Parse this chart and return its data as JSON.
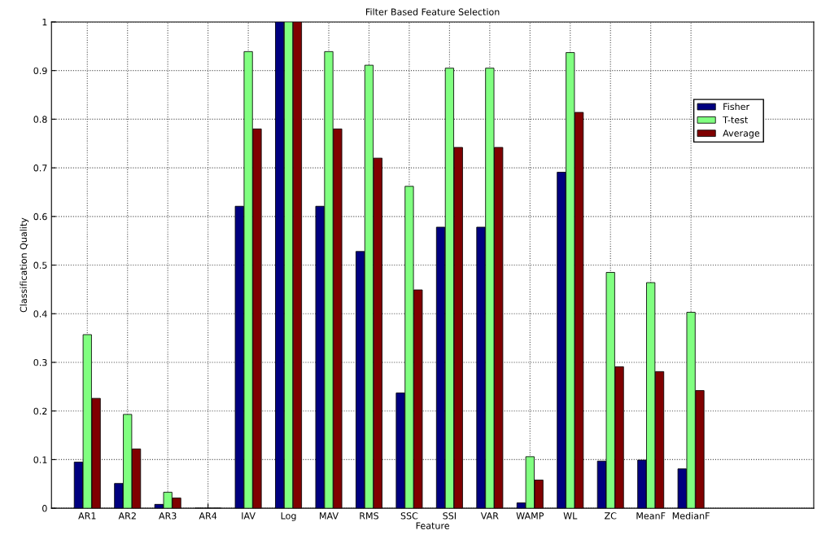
{
  "chart_data": {
    "type": "bar",
    "title": "Filter Based Feature Selection",
    "xlabel": "Feature",
    "ylabel": "Classification Quality",
    "categories": [
      "AR1",
      "AR2",
      "AR3",
      "AR4",
      "IAV",
      "Log",
      "MAV",
      "RMS",
      "SSC",
      "SSI",
      "VAR",
      "WAMP",
      "WL",
      "ZC",
      "MeanF",
      "MedianF"
    ],
    "series": [
      {
        "name": "Fisher",
        "color": "#00007f",
        "values": [
          0.095,
          0.051,
          0.008,
          0,
          0.621,
          1,
          0.621,
          0.528,
          0.237,
          0.578,
          0.578,
          0.011,
          0.691,
          0.097,
          0.099,
          0.081
        ]
      },
      {
        "name": "T-test",
        "color": "#80ff80",
        "values": [
          0.357,
          0.193,
          0.033,
          0,
          0.939,
          1,
          0.939,
          0.911,
          0.662,
          0.905,
          0.905,
          0.106,
          0.937,
          0.485,
          0.464,
          0.403
        ]
      },
      {
        "name": "Average",
        "color": "#800000",
        "values": [
          0.226,
          0.122,
          0.021,
          0,
          0.78,
          1,
          0.78,
          0.72,
          0.449,
          0.742,
          0.742,
          0.058,
          0.814,
          0.291,
          0.281,
          0.242
        ]
      }
    ],
    "ylim": [
      0,
      1
    ],
    "yticks": [
      0,
      0.1,
      0.2,
      0.3,
      0.4,
      0.5,
      0.6,
      0.7,
      0.8,
      0.9,
      1
    ],
    "grid": true,
    "legend": "top right"
  }
}
